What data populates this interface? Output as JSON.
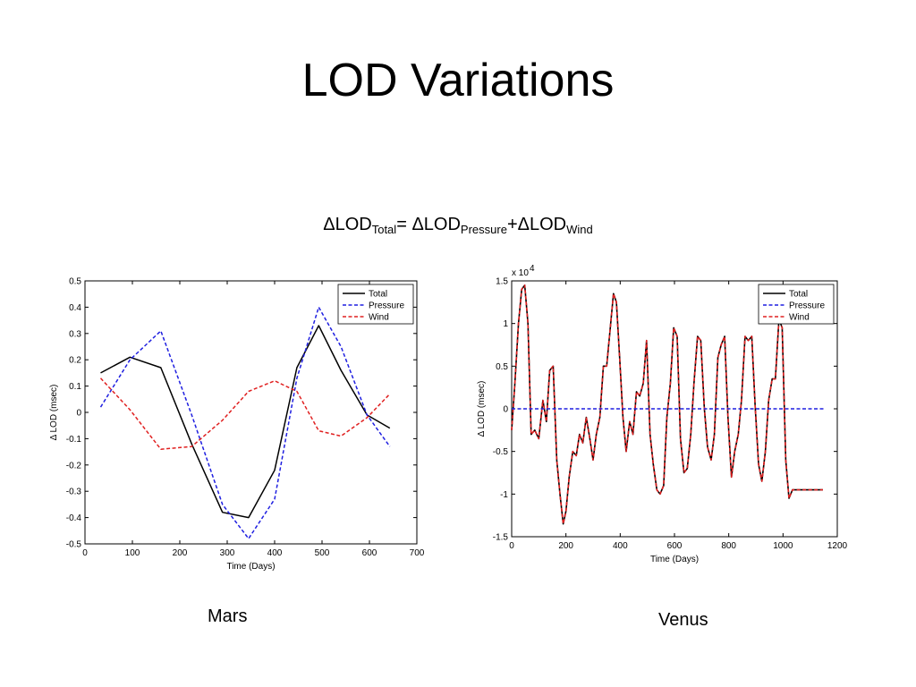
{
  "slide": {
    "title": "LOD Variations",
    "equation": {
      "delta": "ΔLOD",
      "total_sub": "Total",
      "equals": "= ",
      "pressure_sub": "Pressure",
      "plus": "+",
      "wind_sub": "Wind"
    },
    "labels": {
      "mars": "Mars",
      "venus": "Venus"
    }
  },
  "colors": {
    "total": "#000000",
    "pressure": "#1f1fe0",
    "wind": "#e02020",
    "venus_total": "#8b0000"
  },
  "chart_data": [
    {
      "type": "line",
      "name": "Mars",
      "xlabel": "Time (Days)",
      "ylabel": "Δ LOD (msec)",
      "xlim": [
        0,
        700
      ],
      "ylim": [
        -0.5,
        0.5
      ],
      "xticks": [
        0,
        100,
        200,
        300,
        400,
        500,
        600,
        700
      ],
      "yticks": [
        -0.5,
        -0.4,
        -0.3,
        -0.2,
        -0.1,
        0,
        0.1,
        0.2,
        0.3,
        0.4,
        0.5
      ],
      "ytick_labels": [
        "-0.5",
        "-0.4",
        "-0.3",
        "-0.2",
        "-0.1",
        "0",
        "0.1",
        "0.2",
        "0.3",
        "0.4",
        "0.5"
      ],
      "grid": false,
      "legend": "top-right",
      "series": [
        {
          "name": "Total",
          "style": "solid",
          "color": "#000000",
          "x": [
            33,
            95,
            160,
            225,
            290,
            345,
            400,
            447,
            493,
            540,
            595,
            643
          ],
          "y": [
            0.15,
            0.21,
            0.17,
            -0.12,
            -0.38,
            -0.4,
            -0.22,
            0.17,
            0.33,
            0.16,
            -0.01,
            -0.06
          ]
        },
        {
          "name": "Pressure",
          "style": "dashed",
          "color": "#1f1fe0",
          "x": [
            33,
            95,
            160,
            225,
            290,
            345,
            400,
            447,
            493,
            540,
            595,
            643
          ],
          "y": [
            0.02,
            0.2,
            0.31,
            -0.01,
            -0.35,
            -0.48,
            -0.33,
            0.13,
            0.4,
            0.25,
            -0.01,
            -0.13
          ]
        },
        {
          "name": "Wind",
          "style": "dashed",
          "color": "#e02020",
          "x": [
            33,
            95,
            160,
            225,
            290,
            345,
            400,
            447,
            493,
            540,
            595,
            643
          ],
          "y": [
            0.13,
            0.01,
            -0.14,
            -0.13,
            -0.03,
            0.08,
            0.12,
            0.08,
            -0.07,
            -0.09,
            -0.02,
            0.07
          ]
        }
      ]
    },
    {
      "type": "line",
      "name": "Venus",
      "xlabel": "Time (Days)",
      "ylabel": "Δ LOD (msec)",
      "scale_note": "x 10",
      "scale_exp": "4",
      "xlim": [
        0,
        1200
      ],
      "ylim": [
        -1.5,
        1.5
      ],
      "xticks": [
        0,
        200,
        400,
        600,
        800,
        1000,
        1200
      ],
      "yticks": [
        -1.5,
        -1,
        -0.5,
        0,
        0.5,
        1,
        1.5
      ],
      "ytick_labels": [
        "-1.5",
        "-1",
        "-0.5",
        "0",
        "0.5",
        "1",
        "1.5"
      ],
      "grid": false,
      "legend": "top-right",
      "series": [
        {
          "name": "Total",
          "style": "solid",
          "color": "#000000",
          "x": [
            0,
            12,
            25,
            37,
            48,
            60,
            72,
            85,
            100,
            115,
            128,
            140,
            153,
            166,
            178,
            190,
            200,
            212,
            225,
            238,
            250,
            262,
            275,
            288,
            300,
            312,
            325,
            338,
            350,
            362,
            375,
            386,
            398,
            410,
            422,
            435,
            447,
            460,
            472,
            485,
            497,
            510,
            522,
            535,
            547,
            560,
            572,
            585,
            597,
            610,
            622,
            635,
            647,
            660,
            672,
            685,
            697,
            710,
            722,
            735,
            747,
            760,
            772,
            785,
            797,
            810,
            822,
            835,
            847,
            860,
            872,
            885,
            897,
            910,
            922,
            935,
            947,
            960,
            972,
            985,
            997,
            1010,
            1022,
            1035,
            1047,
            1060,
            1072,
            1085,
            1097,
            1110,
            1122,
            1135,
            1147
          ],
          "y": [
            -0.25,
            0.3,
            1.0,
            1.4,
            1.45,
            1.0,
            -0.3,
            -0.25,
            -0.35,
            0.1,
            -0.15,
            0.45,
            0.5,
            -0.6,
            -1.0,
            -1.35,
            -1.2,
            -0.8,
            -0.5,
            -0.55,
            -0.3,
            -0.4,
            -0.1,
            -0.35,
            -0.6,
            -0.3,
            -0.1,
            0.5,
            0.5,
            0.9,
            1.35,
            1.25,
            0.6,
            -0.1,
            -0.5,
            -0.15,
            -0.3,
            0.2,
            0.15,
            0.3,
            0.8,
            -0.3,
            -0.65,
            -0.95,
            -1.0,
            -0.9,
            -0.1,
            0.3,
            0.95,
            0.85,
            -0.35,
            -0.75,
            -0.7,
            -0.3,
            0.3,
            0.85,
            0.8,
            0.0,
            -0.45,
            -0.6,
            -0.3,
            0.6,
            0.75,
            0.85,
            -0.1,
            -0.8,
            -0.5,
            -0.3,
            0.1,
            0.85,
            0.8,
            0.85,
            0.05,
            -0.65,
            -0.85,
            -0.5,
            0.1,
            0.35,
            0.35,
            1.05,
            0.95,
            -0.6,
            -1.05,
            -0.95,
            -0.95,
            -0.95,
            -0.95,
            -0.95,
            -0.95,
            -0.95,
            -0.95,
            -0.95,
            -0.95
          ]
        },
        {
          "name": "Pressure",
          "style": "dashed",
          "color": "#1f1fe0",
          "x": [
            0,
            1150
          ],
          "y": [
            0,
            0
          ]
        },
        {
          "name": "Wind",
          "style": "dashed",
          "color": "#e02020"
        }
      ]
    }
  ]
}
